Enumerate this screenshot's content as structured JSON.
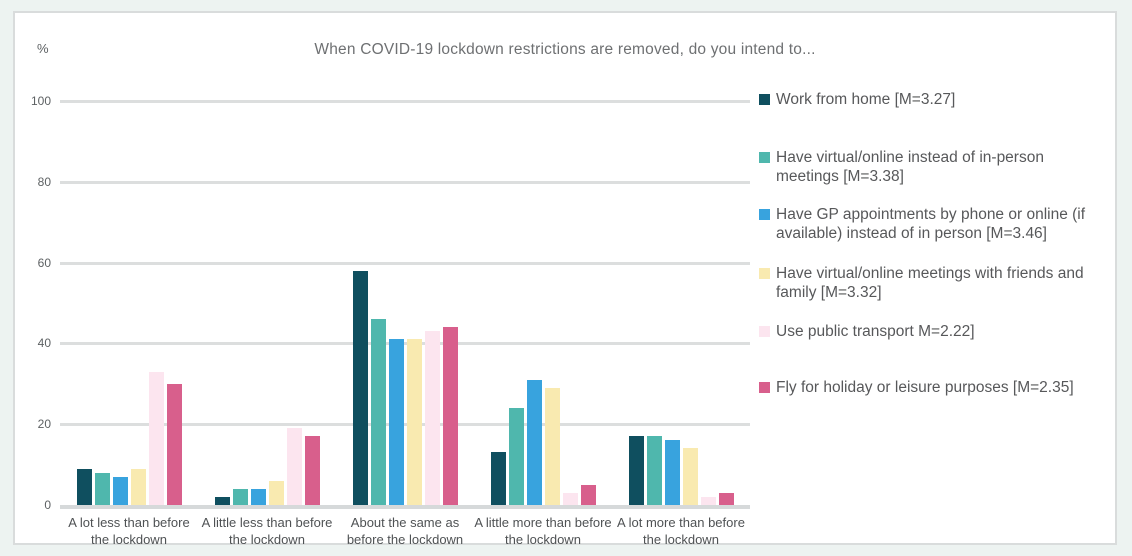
{
  "page": {
    "background_color": "#edf3f1",
    "panel_background": "#ffffff",
    "panel_border_color": "#d9dcdc",
    "gridline_color": "#dcdede"
  },
  "chart_data": {
    "type": "bar",
    "title": "When COVID-19 lockdown restrictions are removed, do you intend to...",
    "xlabel": "",
    "ylabel": "%",
    "ylim": [
      0,
      100
    ],
    "yticks": [
      0,
      20,
      40,
      60,
      80,
      100
    ],
    "grid": true,
    "legend_position": "right",
    "categories": [
      "A lot less than before the lockdown",
      "A little less than before the lockdown",
      "About the same as before the lockdown",
      "A little more than before the lockdown",
      "A lot more than before the lockdown"
    ],
    "series": [
      {
        "name": "Work from home [M=3.27]",
        "color": "#0f4f5f",
        "values": [
          9,
          2,
          58,
          13,
          17
        ]
      },
      {
        "name": "Have virtual/online instead of in-person meetings [M=3.38]",
        "color": "#4fb7ad",
        "values": [
          8,
          4,
          46,
          24,
          17
        ]
      },
      {
        "name": "Have GP appointments by phone or online (if available) instead of in person [M=3.46]",
        "color": "#38a3de",
        "values": [
          7,
          4,
          41,
          31,
          16
        ]
      },
      {
        "name": "Have virtual/online meetings with friends and family [M=3.32]",
        "color": "#f9eab0",
        "values": [
          9,
          6,
          41,
          29,
          14
        ]
      },
      {
        "name": "Use public transport M=2.22]",
        "color": "#fce5ef",
        "values": [
          33,
          19,
          43,
          3,
          2
        ]
      },
      {
        "name": "Fly for holiday or leisure purposes [M=2.35]",
        "color": "#d85f8c",
        "values": [
          30,
          17,
          44,
          5,
          3
        ]
      }
    ]
  }
}
